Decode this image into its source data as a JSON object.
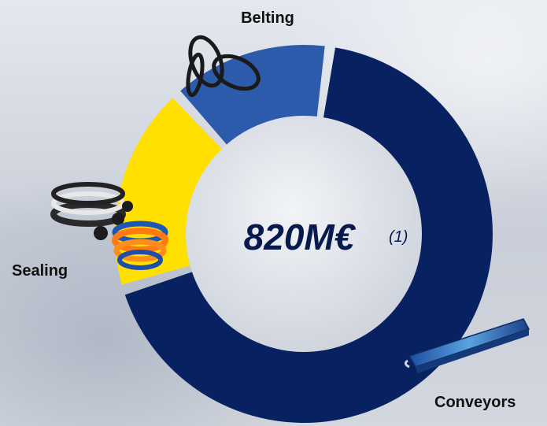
{
  "chart_data": {
    "type": "pie",
    "variant": "donut",
    "categories": [
      "Conveyors",
      "Sealing",
      "Belting"
    ],
    "values": [
      68,
      18,
      14
    ],
    "unit": "%",
    "center_label": {
      "value": "820M€",
      "note": "(1)"
    },
    "legend": "none",
    "colors": {
      "Conveyors": "#082161",
      "Sealing": "#ffe000",
      "Belting": "#2c5bab"
    }
  },
  "icons": {
    "belting": "belt-loops-icon",
    "sealing": "seal-rings-icon",
    "conveyors": "conveyor-belt-icon"
  }
}
